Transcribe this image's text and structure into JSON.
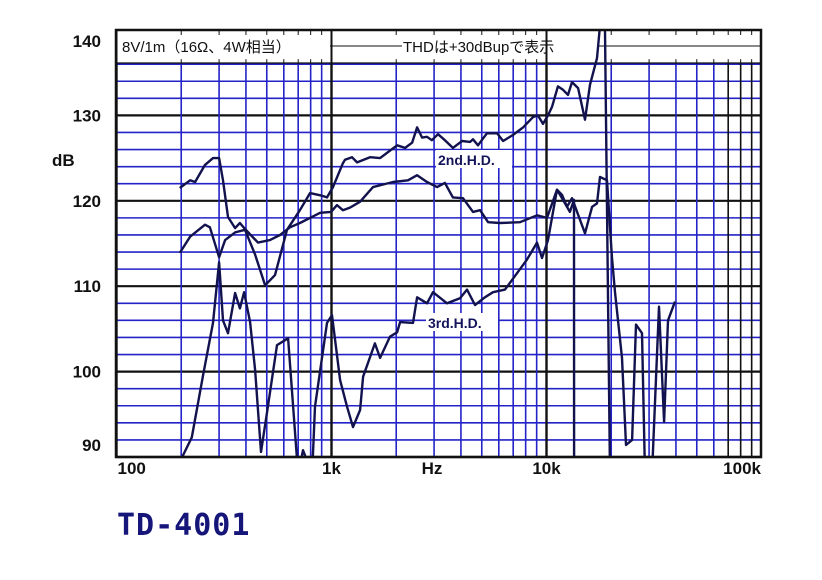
{
  "caption": "TD-4001",
  "chart_data": {
    "type": "line",
    "header_left": "8V/1m（16Ω、4W相当）",
    "header_right": "THDは+30dBupで表示",
    "xlabel": "Hz",
    "ylabel": "dB",
    "xscale": "log",
    "xlim": [
      100,
      100000
    ],
    "ylim": [
      90,
      140
    ],
    "x_ticks": [
      {
        "value": 100,
        "label": "100"
      },
      {
        "value": 1000,
        "label": "1k"
      },
      {
        "value": 10000,
        "label": "10k"
      },
      {
        "value": 100000,
        "label": "100k"
      }
    ],
    "y_ticks": [
      {
        "value": 140,
        "label": "140"
      },
      {
        "value": 130,
        "label": "130"
      },
      {
        "value": 120,
        "label": "120"
      },
      {
        "value": 110,
        "label": "110"
      },
      {
        "value": 100,
        "label": "100"
      },
      {
        "value": 90,
        "label": "90"
      }
    ],
    "grid": true,
    "colors": {
      "curve": "#12124e",
      "grid_minor": "#2323c8",
      "grid_major": "#111111",
      "caption": "#16167a"
    },
    "series": [
      {
        "x": [
          197,
          220,
          232,
          258,
          281,
          300,
          313,
          330,
          356,
          375,
          396,
          455,
          517,
          576,
          641,
          713,
          794,
          885,
          995,
          1061,
          1130,
          1219,
          1358,
          1560,
          1932,
          2270,
          2500,
          2780,
          3100,
          3370,
          3670,
          4090,
          4550,
          4910,
          5350,
          6080,
          7530,
          9030,
          10050,
          11190,
          11800,
          12450,
          13140,
          15110,
          16290,
          17180,
          17740,
          19110,
          20170,
          20830,
          22450,
          23430,
          25000,
          26080,
          27810,
          28720,
          30960,
          33370,
          35220,
          36750,
          39600
        ],
        "y": [
          121.5,
          122.4,
          122.2,
          124.2,
          125.0,
          125.0,
          122.4,
          118.1,
          116.8,
          117.4,
          116.7,
          115.1,
          115.4,
          116.0,
          116.9,
          117.4,
          118.0,
          118.6,
          118.7,
          119.5,
          118.9,
          119.2,
          119.9,
          121.6,
          122.2,
          122.4,
          123.0,
          122.2,
          121.6,
          122.1,
          120.4,
          120.3,
          118.7,
          118.9,
          117.5,
          117.4,
          117.5,
          118.3,
          118.0,
          121.3,
          120.7,
          119.3,
          120.3,
          116.2,
          119.3,
          119.7,
          122.8,
          122.4,
          113.3,
          109.3,
          101.6,
          91.4,
          92.0,
          105.5,
          104.5,
          88,
          88,
          107.6,
          94.1,
          106.0,
          108.2
        ]
      },
      {
        "name": "2nd.H.D.",
        "x": [
          197,
          220,
          258,
          272,
          300,
          320,
          356,
          396,
          441,
          491,
          546,
          621,
          713,
          794,
          903,
          953,
          1016,
          1130,
          1156,
          1245,
          1315,
          1510,
          1683,
          2018,
          2200,
          2370,
          2500,
          2640,
          2780,
          2930,
          3130,
          3370,
          3670,
          4050,
          4410,
          4550,
          4800,
          5280,
          5890,
          6280,
          6980,
          7780,
          8650,
          9120,
          9630,
          10160,
          10610,
          11300,
          11930,
          12590,
          13140,
          14020,
          15110,
          15930,
          17180,
          17740,
          18700,
          19730
        ],
        "y": [
          113.9,
          115.8,
          117.2,
          116.9,
          113.4,
          115.4,
          116.3,
          116.6,
          113.7,
          110.1,
          111.3,
          116.6,
          118.9,
          120.9,
          120.6,
          120.4,
          121.6,
          124.4,
          124.8,
          125.1,
          124.5,
          125.1,
          125.0,
          126.5,
          126.2,
          126.8,
          128.6,
          127.4,
          127.5,
          127.1,
          127.8,
          127.1,
          126.2,
          127.0,
          126.9,
          127.2,
          126.5,
          127.9,
          127.9,
          127.0,
          127.7,
          128.6,
          129.8,
          130.0,
          129.0,
          130.0,
          131.0,
          133.4,
          133.0,
          132.4,
          133.9,
          133.2,
          129.5,
          133.6,
          136.7,
          140.5,
          141.0,
          88
        ]
      },
      {
        "name": "3rd.H.D.",
        "x": [
          202,
          224,
          252,
          281,
          300,
          313,
          330,
          356,
          375,
          392,
          418,
          441,
          470,
          501,
          558,
          628,
          699,
          737,
          812,
          838,
          953,
          1005,
          1096,
          1181,
          1259,
          1358,
          1403,
          1592,
          1683,
          1871,
          2018,
          2084,
          2394,
          2500,
          2780,
          2965,
          3444,
          3960,
          4270,
          4650,
          5170,
          5640,
          6410,
          8110,
          9030,
          9530,
          10160,
          11190,
          11800,
          12850,
          13430,
          13440
        ],
        "y": [
          90.0,
          92.3,
          99.4,
          105.7,
          112.8,
          106.0,
          104.5,
          109.2,
          107.4,
          109.3,
          105.8,
          100.2,
          90.6,
          95.2,
          103.1,
          103.9,
          88,
          90.8,
          88,
          95.9,
          105.7,
          106.6,
          99.0,
          95.9,
          93.5,
          95.5,
          99.4,
          103.3,
          101.6,
          104.1,
          104.6,
          105.8,
          105.7,
          108.7,
          108.0,
          109.3,
          108.0,
          108.6,
          109.6,
          107.8,
          108.7,
          109.3,
          109.6,
          113.1,
          115.1,
          113.3,
          115.4,
          121.3,
          120.3,
          118.7,
          120.1,
          88
        ]
      }
    ],
    "annotations": [
      "2nd.H.D.",
      "3rd.H.D."
    ]
  }
}
